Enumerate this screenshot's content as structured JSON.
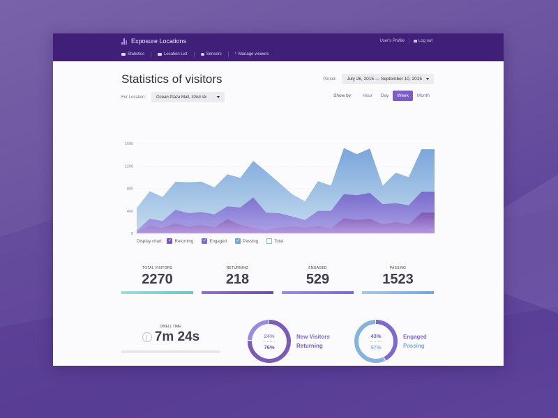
{
  "app": {
    "title": "Exposure Locations",
    "nav": [
      {
        "label": "Statistics",
        "icon": "chart-icon"
      },
      {
        "label": "Location List",
        "icon": "list-icon"
      },
      {
        "label": "Sensors",
        "icon": "sensor-icon"
      },
      {
        "label": "Manage viewers",
        "icon": "star-icon"
      }
    ],
    "user": {
      "profile_label": "User's Profile",
      "logout_label": "Log out"
    }
  },
  "page": {
    "title": "Statistics of visitors",
    "location": {
      "label": "For Location:",
      "value": "Ocean Plaza Mall, 32nd str."
    },
    "period": {
      "label": "Period:",
      "value": "July 26, 2015 — September 10, 2015"
    },
    "show_by": {
      "label": "Show by:",
      "options": [
        "Hour",
        "Day",
        "Week",
        "Month"
      ],
      "active": "Week"
    }
  },
  "legend": {
    "label": "Display chart:",
    "items": [
      {
        "label": "Returning",
        "checked": true,
        "color": "#7a56b8"
      },
      {
        "label": "Engaged",
        "checked": true,
        "color": "#7e6ad0"
      },
      {
        "label": "Passing",
        "checked": true,
        "color": "#78a6da"
      },
      {
        "label": "Total",
        "checked": false,
        "color": "#8cc0d8"
      }
    ]
  },
  "chart_data": {
    "type": "area",
    "title": "Statistics of visitors",
    "xlabel": "",
    "ylabel": "",
    "ylim": [
      0,
      1600
    ],
    "yticks": [
      0,
      400,
      800,
      1200,
      1600
    ],
    "grid": true,
    "x": [
      0,
      1,
      2,
      3,
      4,
      5,
      6,
      7,
      8,
      9,
      10,
      11,
      12,
      13,
      14,
      15,
      16,
      17,
      18,
      19,
      20,
      21,
      22,
      23,
      24
    ],
    "series": [
      {
        "name": "Passing",
        "color": "#7ba9dc",
        "values": [
          450,
          750,
          650,
          920,
          910,
          920,
          820,
          1050,
          990,
          1290,
          1100,
          900,
          700,
          570,
          930,
          850,
          1520,
          1410,
          1510,
          850,
          1080,
          1000,
          1500,
          1500,
          1500
        ]
      },
      {
        "name": "Engaged",
        "color": "#7d6bd0",
        "values": [
          50,
          260,
          220,
          420,
          360,
          380,
          340,
          480,
          460,
          640,
          370,
          360,
          300,
          240,
          400,
          400,
          700,
          680,
          720,
          520,
          540,
          500,
          740,
          740,
          740
        ]
      },
      {
        "name": "Returning",
        "color": "#8a64b8",
        "values": [
          40,
          130,
          100,
          180,
          120,
          150,
          110,
          250,
          150,
          100,
          60,
          100,
          120,
          100,
          130,
          90,
          270,
          240,
          260,
          160,
          200,
          160,
          370,
          370,
          370
        ]
      }
    ]
  },
  "stats": [
    {
      "label": "Total visitors",
      "value": "2270",
      "color": "#7fd0cf"
    },
    {
      "label": "Returning",
      "value": "218",
      "color": "#7a56b0"
    },
    {
      "label": "Engaged",
      "value": "529",
      "color": "#8878d6"
    },
    {
      "label": "Passing",
      "value": "1523",
      "color": "#86b0dc"
    }
  ],
  "dwell": {
    "label": "Dwell time:",
    "value": "7m 24s"
  },
  "donuts": [
    {
      "top_pct": "24%",
      "bottom_pct": "76%",
      "top_label": "New Visitors",
      "bottom_label": "Returning",
      "top_color": "#9b8be0",
      "bottom_color": "#7a5bb5",
      "top_value": 24
    },
    {
      "top_pct": "43%",
      "bottom_pct": "57%",
      "top_label": "Engaged",
      "bottom_label": "Passing",
      "top_color": "#7c6ad0",
      "bottom_color": "#86b2de",
      "top_value": 43
    }
  ]
}
